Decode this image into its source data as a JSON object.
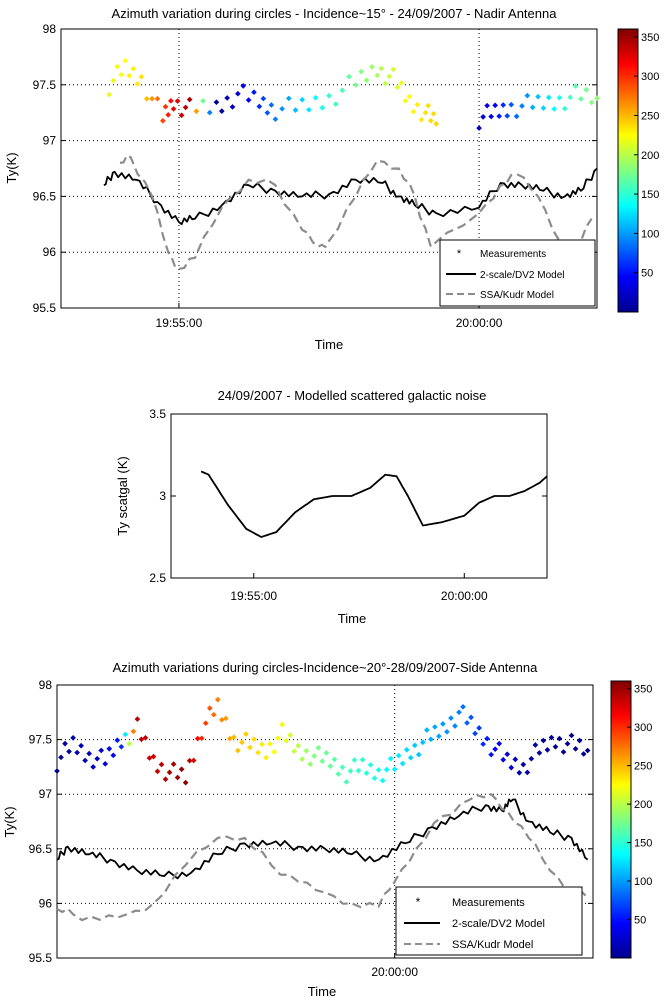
{
  "chart_data": [
    {
      "type": "scatter+line",
      "title": "Azimuth variation during circles - Incidence~15° - 24/09/2007 - Nadir Antenna",
      "xlabel": "Time",
      "ylabel": "Ty(K)",
      "xlim": [
        0,
        100
      ],
      "ylim": [
        95.5,
        98
      ],
      "yticks": [
        95.5,
        96,
        96.5,
        97,
        97.5,
        98
      ],
      "yticklabels": [
        "95.5",
        "96",
        "96.5",
        "97",
        "97.5",
        "98"
      ],
      "xticks": [
        {
          "t": 22,
          "label": "19:55:00"
        },
        {
          "t": 78,
          "label": "20:00:00"
        }
      ],
      "grid": true,
      "colorbar": {
        "range": [
          0,
          360
        ],
        "ticks": [
          50,
          100,
          150,
          200,
          250,
          300,
          350
        ],
        "labels": [
          "50",
          "100",
          "150",
          "200",
          "250",
          "300",
          "350"
        ]
      },
      "legend": {
        "position": "bottom-right",
        "entries": [
          "Measurements",
          "2-scale/DV2 Model",
          "SSA/Kudr Model"
        ]
      },
      "series": [
        {
          "name": "Measurements",
          "kind": "scatter",
          "segments": [
            {
              "t": [
                9,
                12,
                15,
                19,
                21,
                24,
                29,
                33,
                37,
                40,
                45,
                50,
                55,
                59,
                62,
                65,
                68,
                70
              ],
              "v": [
                97.5,
                97.65,
                97.55,
                97.2,
                97.35,
                97.28,
                97.3,
                97.42,
                97.35,
                97.28,
                97.3,
                97.38,
                97.52,
                97.65,
                97.55,
                97.35,
                97.25,
                97.15
              ],
              "az": [
                215,
                225,
                235,
                290,
                320,
                345,
                5,
                30,
                60,
                90,
                120,
                150,
                175,
                195,
                210,
                225,
                235,
                240
              ]
            },
            {
              "t": [
                78,
                81,
                84,
                88,
                92,
                96,
                100
              ],
              "v": [
                97.2,
                97.25,
                97.3,
                97.32,
                97.35,
                97.4,
                97.38
              ],
              "az": [
                20,
                45,
                75,
                105,
                135,
                165,
                185
              ]
            }
          ]
        },
        {
          "name": "2-scale/DV2 Model",
          "kind": "line",
          "color": "#000000",
          "t": [
            8,
            10,
            14,
            18,
            22,
            25,
            30,
            35,
            40,
            45,
            50,
            55,
            60,
            63,
            66,
            70,
            78,
            82,
            86,
            90,
            94,
            97,
            100
          ],
          "v": [
            96.6,
            96.72,
            96.65,
            96.45,
            96.27,
            96.3,
            96.42,
            96.6,
            96.55,
            96.5,
            96.52,
            96.65,
            96.62,
            96.5,
            96.42,
            96.35,
            96.4,
            96.62,
            96.6,
            96.55,
            96.5,
            96.55,
            96.75
          ]
        },
        {
          "name": "SSA/Kudr Model",
          "kind": "line",
          "color": "#8c8c8c",
          "dash": true,
          "t": [
            11,
            13,
            17,
            20,
            22,
            25,
            30,
            35,
            40,
            45,
            48,
            50,
            55,
            59,
            63,
            66,
            69,
            78,
            82,
            85,
            89,
            93,
            96,
            99
          ],
          "v": [
            96.8,
            96.85,
            96.5,
            96.0,
            95.85,
            95.95,
            96.4,
            96.65,
            96.6,
            96.2,
            96.05,
            96.1,
            96.5,
            96.82,
            96.75,
            96.5,
            96.05,
            96.35,
            96.6,
            96.7,
            96.5,
            96.1,
            96.05,
            96.3
          ]
        }
      ]
    },
    {
      "type": "line",
      "title": "24/09/2007 - Modelled scattered galactic noise",
      "xlabel": "Time",
      "ylabel": "Ty scatgal (K)",
      "xlim": [
        0,
        100
      ],
      "ylim": [
        2.5,
        3.5
      ],
      "yticks": [
        2.5,
        3,
        3.5
      ],
      "yticklabels": [
        "2.5",
        "3",
        "3.5"
      ],
      "xticks": [
        {
          "t": 22,
          "label": "19:55:00"
        },
        {
          "t": 78,
          "label": "20:00:00"
        }
      ],
      "grid": false,
      "series": [
        {
          "name": "Ty scatgal",
          "kind": "line",
          "color": "#000000",
          "t": [
            8,
            10,
            15,
            20,
            24,
            28,
            33,
            38,
            43,
            48,
            53,
            57,
            60,
            63,
            67,
            72,
            75,
            78,
            82,
            86,
            90,
            94,
            98,
            100
          ],
          "v": [
            3.15,
            3.13,
            2.95,
            2.8,
            2.75,
            2.78,
            2.9,
            2.98,
            3.0,
            3.0,
            3.05,
            3.13,
            3.12,
            3.0,
            2.82,
            2.84,
            2.86,
            2.88,
            2.96,
            3.0,
            3.0,
            3.03,
            3.08,
            3.12
          ]
        }
      ]
    },
    {
      "type": "scatter+line",
      "title": "Azimuth variations during circles-Incidence~20°-28/09/2007-Side Antenna",
      "xlabel": "Time",
      "ylabel": "Ty(K)",
      "xlim": [
        0,
        100
      ],
      "ylim": [
        95.5,
        98
      ],
      "yticks": [
        95.5,
        96,
        96.5,
        97,
        97.5,
        98
      ],
      "yticklabels": [
        "95.5",
        "96",
        "96.5",
        "97",
        "97.5",
        "98"
      ],
      "xticks": [
        {
          "t": 63,
          "label": "20:00:00"
        }
      ],
      "grid": true,
      "colorbar": {
        "range": [
          0,
          360
        ],
        "ticks": [
          50,
          100,
          150,
          200,
          250,
          300,
          350
        ],
        "labels": [
          "50",
          "100",
          "150",
          "200",
          "250",
          "300",
          "350"
        ]
      },
      "legend": {
        "position": "bottom-right",
        "entries": [
          "Measurements",
          "2-scale/DV2 Model",
          "SSA/Kudr Model"
        ]
      },
      "series": [
        {
          "name": "Measurements",
          "kind": "scatter",
          "segments": [
            {
              "t": [
                0,
                3,
                6,
                9,
                12,
                15,
                18,
                21,
                24,
                27,
                30,
                33,
                36,
                39,
                42,
                45,
                48,
                51,
                54,
                57,
                60,
                63,
                66,
                69,
                72,
                75,
                78,
                81,
                84,
                87,
                90,
                93,
                96,
                99
              ],
              "v": [
                97.3,
                97.45,
                97.35,
                97.3,
                97.5,
                97.6,
                97.3,
                97.2,
                97.15,
                97.6,
                97.8,
                97.5,
                97.45,
                97.4,
                97.55,
                97.4,
                97.35,
                97.3,
                97.2,
                97.25,
                97.2,
                97.25,
                97.4,
                97.5,
                97.6,
                97.75,
                97.6,
                97.45,
                97.3,
                97.25,
                97.4,
                97.5,
                97.45,
                97.4
              ],
              "az": [
                5,
                15,
                20,
                30,
                60,
                340,
                330,
                345,
                355,
                300,
                270,
                250,
                240,
                230,
                220,
                200,
                180,
                170,
                160,
                150,
                140,
                130,
                120,
                110,
                100,
                90,
                70,
                50,
                30,
                15,
                10,
                5,
                5,
                5
              ]
            }
          ]
        },
        {
          "name": "2-scale/DV2 Model",
          "kind": "line",
          "color": "#000000",
          "t": [
            0,
            2,
            6,
            10,
            15,
            20,
            25,
            30,
            35,
            40,
            45,
            50,
            55,
            60,
            65,
            70,
            75,
            80,
            83,
            85,
            88,
            92,
            96,
            99
          ],
          "v": [
            96.4,
            96.52,
            96.45,
            96.4,
            96.3,
            96.25,
            96.28,
            96.45,
            96.55,
            96.55,
            96.52,
            96.5,
            96.45,
            96.4,
            96.55,
            96.7,
            96.8,
            96.9,
            96.85,
            96.95,
            96.75,
            96.65,
            96.6,
            96.4
          ]
        },
        {
          "name": "SSA/Kudr Model",
          "kind": "line",
          "color": "#8c8c8c",
          "dash": true,
          "t": [
            0,
            3,
            8,
            13,
            18,
            24,
            30,
            35,
            40,
            45,
            50,
            55,
            60,
            63,
            67,
            72,
            77,
            81,
            84,
            88,
            92,
            96,
            99
          ],
          "v": [
            95.95,
            95.9,
            95.85,
            95.9,
            96.0,
            96.35,
            96.6,
            96.6,
            96.35,
            96.2,
            96.1,
            96.0,
            95.97,
            96.2,
            96.5,
            96.8,
            96.95,
            97.0,
            96.85,
            96.6,
            96.3,
            96.1,
            96.05
          ]
        }
      ]
    }
  ]
}
